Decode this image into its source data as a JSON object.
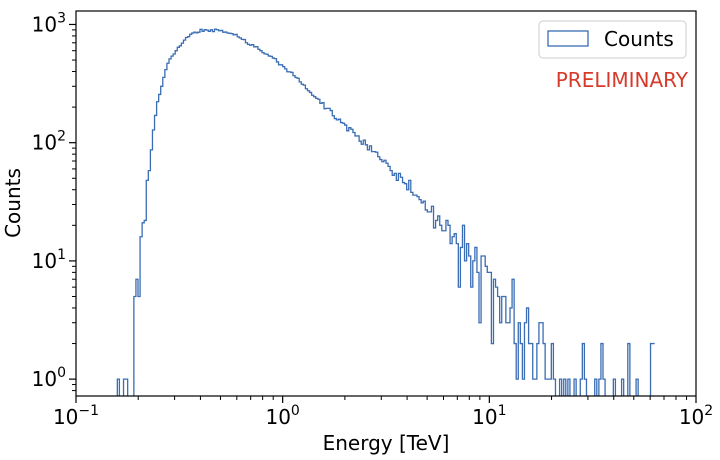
{
  "chart_data": {
    "type": "histogram",
    "title": "",
    "xlabel": "Energy [TeV]",
    "ylabel": "Counts",
    "xscale": "log",
    "yscale": "log",
    "xlim": [
      0.1,
      100
    ],
    "ylim": [
      0.72,
      1300
    ],
    "x_ticks": [
      {
        "value": 0.1,
        "base": "10",
        "exp": "−1"
      },
      {
        "value": 1,
        "base": "10",
        "exp": "0"
      },
      {
        "value": 10,
        "base": "10",
        "exp": "1"
      },
      {
        "value": 100,
        "base": "10",
        "exp": "2"
      }
    ],
    "y_ticks": [
      {
        "value": 1,
        "base": "10",
        "exp": "0"
      },
      {
        "value": 10,
        "base": "10",
        "exp": "1"
      },
      {
        "value": 100,
        "base": "10",
        "exp": "2"
      },
      {
        "value": 1000,
        "base": "10",
        "exp": "3"
      }
    ],
    "legend": {
      "label": "Counts",
      "placement": "upper-right"
    },
    "annotation": {
      "text": "PRELIMINARY",
      "color": "#d63a2b"
    },
    "series": [
      {
        "name": "Counts",
        "color": "#3a6db4",
        "bins_per_decade": 100,
        "first_bin_left_edge": 0.1,
        "counts": [
          0,
          0,
          0,
          0,
          0,
          0,
          0,
          0,
          0,
          0,
          0,
          0,
          0,
          0,
          0,
          0,
          0,
          0,
          0,
          0,
          1,
          0,
          0,
          1,
          1,
          0,
          0,
          0,
          5,
          7,
          5,
          16,
          21,
          22,
          48,
          58,
          87,
          128,
          170,
          222,
          256,
          300,
          357,
          415,
          470,
          512,
          540,
          563,
          600,
          641,
          660,
          695,
          737,
          776,
          788,
          827,
          846,
          862,
          850,
          860,
          911,
          875,
          903,
          896,
          875,
          901,
          870,
          912,
          902,
          885,
          890,
          860,
          863,
          847,
          842,
          837,
          817,
          824,
          785,
          770,
          748,
          745,
          700,
          679,
          667,
          675,
          647,
          649,
          617,
          600,
          578,
          564,
          560,
          542,
          537,
          520,
          514,
          482,
          456,
          456,
          440,
          421,
          398,
          397,
          393,
          369,
          356,
          351,
          327,
          312,
          307,
          286,
          275,
          266,
          252,
          245,
          237,
          233,
          215,
          218,
          194,
          195,
          195,
          187,
          169,
          160,
          156,
          158,
          148,
          146,
          141,
          126,
          134,
          130,
          122,
          114,
          114,
          103,
          97,
          105,
          96,
          87,
          94,
          84,
          84,
          83,
          76,
          72,
          69,
          71,
          67,
          63,
          58,
          53,
          55,
          48,
          55,
          51,
          46,
          45,
          40,
          48,
          38,
          36,
          36,
          35,
          33,
          31,
          32,
          27,
          26,
          26,
          29,
          19,
          22,
          24,
          20,
          18,
          18,
          22,
          20,
          14,
          16,
          17,
          14,
          6,
          13,
          20,
          10,
          14,
          11,
          6,
          10,
          13,
          8,
          3,
          11,
          11,
          9,
          8,
          8,
          2,
          7,
          6,
          5,
          3,
          5,
          5,
          3,
          3,
          4,
          7,
          2,
          1,
          3,
          2,
          1,
          3,
          4,
          2,
          2,
          1,
          1,
          2,
          3,
          3,
          2,
          1,
          1,
          1,
          2,
          1,
          0,
          0,
          1,
          0,
          1,
          0,
          1,
          0,
          0,
          1,
          0,
          0,
          1,
          2,
          1,
          0,
          0,
          0,
          0,
          1,
          0,
          1,
          2,
          1,
          0,
          0,
          0,
          0,
          1,
          0,
          0,
          0,
          1,
          0,
          0,
          2,
          0,
          0,
          0,
          1,
          0,
          0,
          0,
          0,
          0,
          0,
          2,
          2
        ]
      }
    ]
  }
}
